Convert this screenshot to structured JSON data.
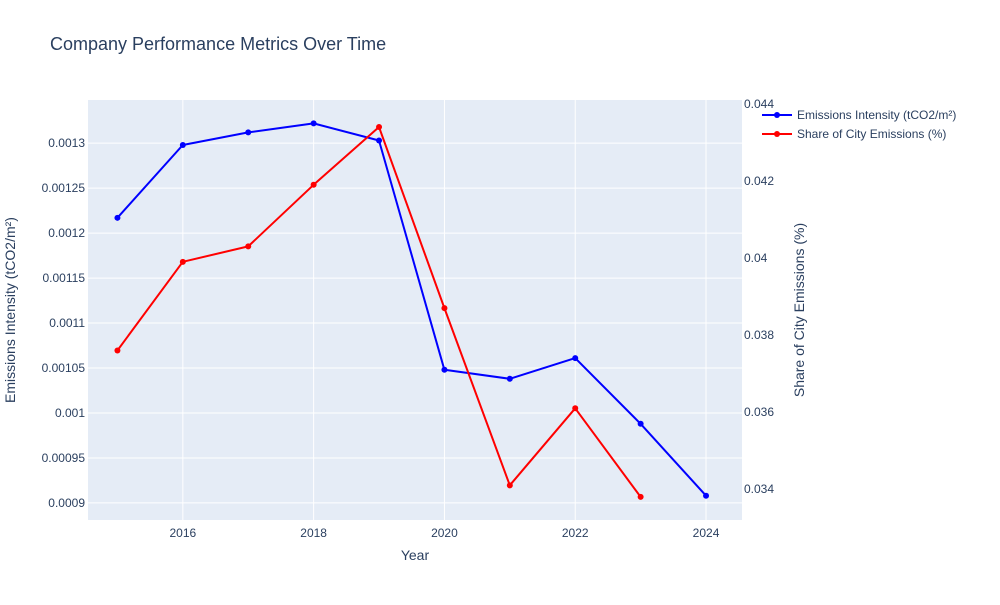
{
  "chart_data": {
    "type": "line",
    "title": "Company Performance Metrics Over Time",
    "xlabel": "Year",
    "ylabel_left": "Emissions Intensity (tCO2/m²)",
    "ylabel_right": "Share of City Emissions (%)",
    "x_ticks": [
      "2016",
      "2018",
      "2020",
      "2022",
      "2024"
    ],
    "y_left_ticks": [
      "0.0009",
      "0.00095",
      "0.001",
      "0.00105",
      "0.0011",
      "0.00115",
      "0.0012",
      "0.00125",
      "0.0013"
    ],
    "y_right_ticks": [
      "0.034",
      "0.036",
      "0.038",
      "0.04",
      "0.042",
      "0.044"
    ],
    "xlim": [
      2014.55,
      2024.55
    ],
    "ylim_left": [
      0.000881,
      0.001348
    ],
    "ylim_right": [
      0.0332,
      0.0441
    ],
    "grid": true,
    "legend_position": "top-right",
    "series": [
      {
        "name": "Emissions Intensity (tCO2/m²)",
        "axis": "left",
        "color": "#0000ff",
        "x": [
          2015,
          2016,
          2017,
          2018,
          2019,
          2020,
          2021,
          2022,
          2023,
          2024
        ],
        "y": [
          0.001217,
          0.001298,
          0.001312,
          0.001322,
          0.001303,
          0.001048,
          0.001038,
          0.001061,
          0.000988,
          0.000908
        ]
      },
      {
        "name": "Share of City Emissions (%)",
        "axis": "right",
        "color": "#ff0000",
        "x": [
          2015,
          2016,
          2017,
          2018,
          2019,
          2020,
          2021,
          2022,
          2023
        ],
        "y": [
          0.0376,
          0.0399,
          0.0403,
          0.0419,
          0.0434,
          0.0387,
          0.0341,
          0.0361,
          0.0338
        ]
      }
    ]
  }
}
